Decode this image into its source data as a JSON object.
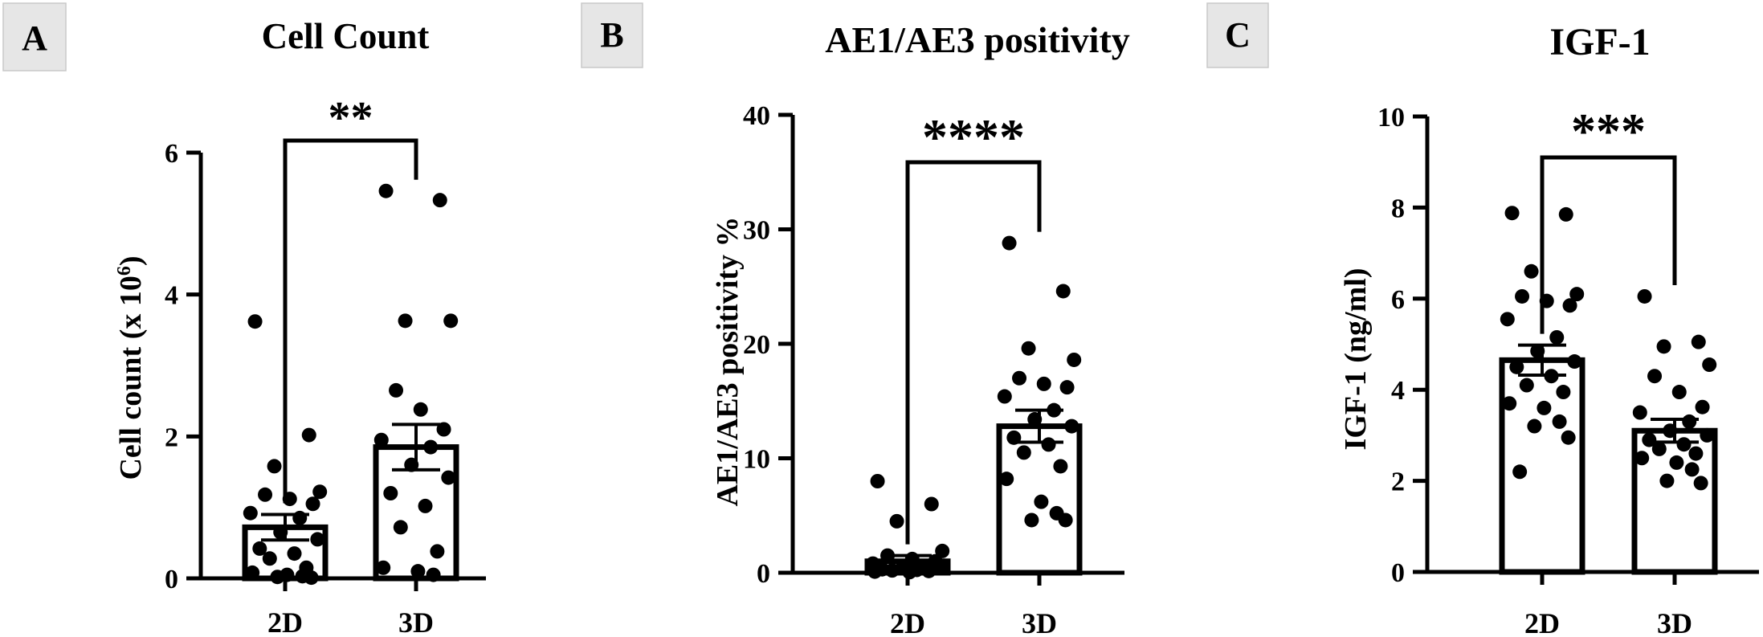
{
  "chart_data": [
    {
      "type": "bar",
      "panel_label": "A",
      "title": "Cell Count",
      "ylabel_main": "Cell count (x 10",
      "ylabel_sup": "6",
      "ylabel_tail": ")",
      "categories": [
        "2D",
        "3D"
      ],
      "ylim": [
        0,
        6
      ],
      "yticks": [
        0,
        2,
        4,
        6
      ],
      "series": [
        {
          "values": [
            0.72,
            1.85
          ],
          "sem": [
            0.18,
            0.32
          ],
          "points": [
            [
              3.62,
              2.02,
              1.58,
              1.22,
              1.18,
              1.12,
              1.05,
              0.92,
              0.85,
              0.65,
              0.55,
              0.42,
              0.35,
              0.28,
              0.15,
              0.08,
              0.05,
              0.03,
              0.02,
              0.01
            ],
            [
              5.46,
              5.33,
              3.63,
              3.63,
              2.65,
              2.38,
              2.1,
              1.95,
              1.85,
              1.6,
              1.42,
              1.2,
              1.02,
              0.72,
              0.38,
              0.15,
              0.1,
              0.05
            ]
          ]
        }
      ],
      "significance": "**"
    },
    {
      "type": "bar",
      "panel_label": "B",
      "title": "AE1/AE3 positivity",
      "ylabel_main": "AE1/AE3 positivity %",
      "ylabel_sup": "",
      "ylabel_tail": "",
      "categories": [
        "2D",
        "3D"
      ],
      "ylim": [
        0,
        40
      ],
      "yticks": [
        0,
        10,
        20,
        30,
        40
      ],
      "series": [
        {
          "values": [
            1.0,
            12.8
          ],
          "sem": [
            0.5,
            1.4
          ],
          "points": [
            [
              8.0,
              6.0,
              4.5,
              1.9,
              1.5,
              1.2,
              1.0,
              0.8,
              0.6,
              0.5,
              0.4,
              0.3,
              0.25,
              0.2,
              0.15,
              0.1,
              0.05
            ],
            [
              28.8,
              24.6,
              19.6,
              18.6,
              17.0,
              16.5,
              16.2,
              15.4,
              14.2,
              13.4,
              12.8,
              11.8,
              11.2,
              10.5,
              9.3,
              8.2,
              6.2,
              5.2,
              4.6,
              4.6
            ]
          ]
        }
      ],
      "significance": "****"
    },
    {
      "type": "bar",
      "panel_label": "C",
      "title": "IGF-1",
      "ylabel_main": "IGF-1 (ng/ml)",
      "ylabel_sup": "",
      "ylabel_tail": "",
      "categories": [
        "2D",
        "3D"
      ],
      "ylim": [
        0,
        10
      ],
      "yticks": [
        0,
        2,
        4,
        6,
        8,
        10
      ],
      "series": [
        {
          "values": [
            4.65,
            3.1
          ],
          "sem": [
            0.33,
            0.25
          ],
          "points": [
            [
              7.88,
              7.85,
              6.6,
              6.1,
              6.05,
              5.95,
              5.85,
              5.55,
              5.15,
              4.85,
              4.62,
              4.5,
              4.3,
              4.1,
              3.95,
              3.7,
              3.6,
              3.3,
              3.2,
              2.95,
              2.2
            ],
            [
              6.05,
              5.05,
              4.95,
              4.55,
              4.3,
              3.95,
              3.62,
              3.5,
              3.3,
              3.1,
              3.0,
              2.9,
              2.8,
              2.7,
              2.6,
              2.5,
              2.4,
              2.25,
              2.0,
              1.95
            ]
          ]
        }
      ],
      "significance": "***"
    }
  ]
}
